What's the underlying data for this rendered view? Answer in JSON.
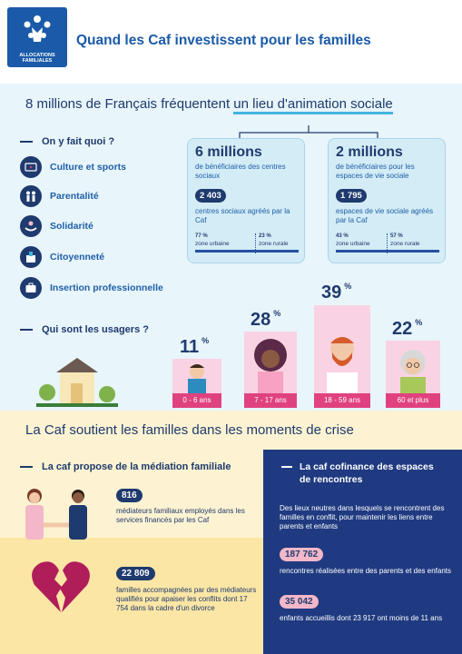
{
  "header": {
    "logo_line1": "ALLOCATIONS",
    "logo_line2": "FAMILIALES",
    "title": "Quand les Caf investissent pour les familles"
  },
  "section1": {
    "title_start": "8 millions de Français fréquentent ",
    "title_underlined": "un lieu d'animation sociale",
    "activities_heading": "On y fait quoi ?",
    "activities": [
      {
        "label": "Culture et sports",
        "icon": "tv-icon"
      },
      {
        "label": "Parentalité",
        "icon": "family-icon"
      },
      {
        "label": "Solidarité",
        "icon": "hands-icon"
      },
      {
        "label": "Citoyenneté",
        "icon": "ballot-icon"
      },
      {
        "label": "Insertion professionnelle",
        "icon": "briefcase-icon"
      }
    ],
    "cards": [
      {
        "big": "6 millions",
        "sub": "de bénéficiaires des centres sociaux",
        "badge": "2 403",
        "desc": "centres sociaux agréés par la Caf",
        "urban_pct": "77 %",
        "urban_label": "zone urbaine",
        "rural_pct": "23 %",
        "rural_label": "zone rurale",
        "urban_share": 0.77
      },
      {
        "big": "2 millions",
        "sub": "de bénéficiaires pour les espaces de vie sociale",
        "badge": "1 795",
        "desc": "espaces de vie sociale agréés par la Caf",
        "urban_pct": "43 %",
        "urban_label": "zone urbaine",
        "rural_pct": "57 %",
        "rural_label": "zone rurale",
        "urban_share": 0.43
      }
    ],
    "users_heading": "Qui sont les usagers ?",
    "users": [
      {
        "pct": "11",
        "unit": "%",
        "label": "0 - 6 ans"
      },
      {
        "pct": "28",
        "unit": "%",
        "label": "7 - 17 ans"
      },
      {
        "pct": "39",
        "unit": "%",
        "label": "18 - 59 ans"
      },
      {
        "pct": "22",
        "unit": "%",
        "label": "60 et plus"
      }
    ]
  },
  "section2": {
    "title": "La Caf soutient les familles dans les moments de crise",
    "mediation_heading": "La caf propose de la médiation familiale",
    "mediation": [
      {
        "badge": "816",
        "text": "médiateurs familiaux employés dans les services financés par les Caf"
      },
      {
        "badge": "22 809",
        "text": "familles accompagnées par des médiateurs qualifiés pour apaiser les conflits dont 17 754 dans la cadre d'un divorce"
      }
    ],
    "spaces_heading_line1": "La caf cofinance des espaces",
    "spaces_heading_line2": "de rencontres",
    "spaces_intro": "Des lieux neutres dans lesquels se rencontrent des familles en conflit, pour maintenir les liens entre parents et enfants",
    "spaces": [
      {
        "badge": "187 762",
        "text": "rencontres réalisées entre des parents et des enfants"
      },
      {
        "badge": "35 042",
        "text": "enfants accueillis dont 23 917 ont moins de 11 ans"
      }
    ]
  },
  "colors": {
    "navy": "#1f3a6e",
    "blue": "#1a5aa8",
    "light_blue_bg": "#e8f5fb",
    "pink": "#e0427f",
    "light_pink": "#f9d3e3",
    "cream": "#fdf3d2",
    "dark_panel": "#1f3a80"
  }
}
